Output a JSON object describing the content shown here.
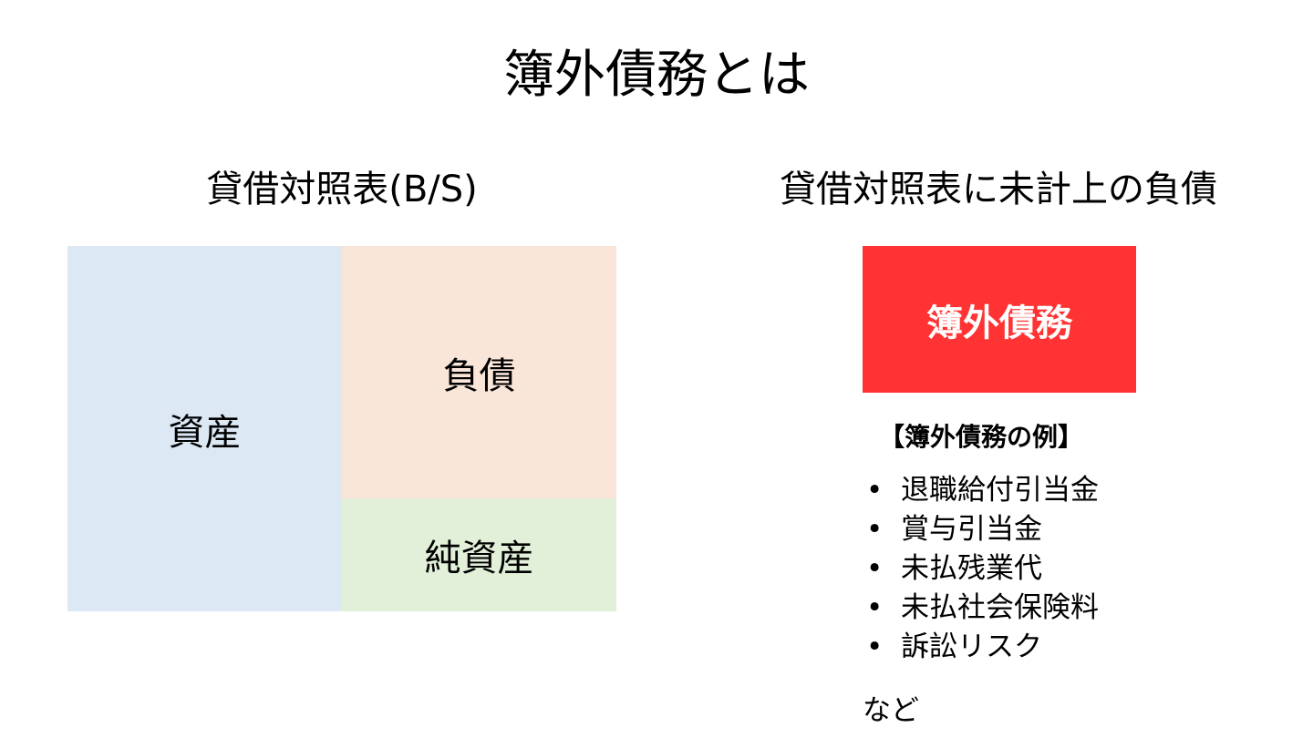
{
  "title": "簿外債務とは",
  "left": {
    "heading": "貸借対照表(B/S)",
    "assets": {
      "label": "資産",
      "color": "#dde8f5"
    },
    "liabilities": {
      "label": "負債",
      "color": "#fae5d9"
    },
    "net_assets": {
      "label": "純資産",
      "color": "#e2efd9"
    }
  },
  "right": {
    "heading": "貸借対照表に未計上の負債",
    "highlight": {
      "label": "簿外債務",
      "color": "#ff3333"
    },
    "examples_heading": "【簿外債務の例】",
    "bullet": "•",
    "examples": [
      "退職給付引当金",
      "賞与引当金",
      "未払残業代",
      "未払社会保険料",
      "訴訟リスク"
    ],
    "etc": "など"
  }
}
